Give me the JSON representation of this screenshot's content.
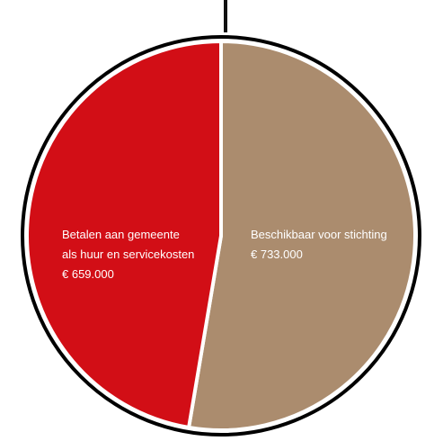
{
  "chart_data": {
    "type": "pie",
    "title": "",
    "slices": [
      {
        "name": "Beschikbaar voor stichting",
        "value": 733000,
        "value_label": "€ 733.000",
        "label_lines": [
          "Beschikbaar voor stichting"
        ],
        "color": "#ab8c6e"
      },
      {
        "name": "Betalen aan gemeente als huur en servicekosten",
        "value": 659000,
        "value_label": "€ 659.000",
        "label_lines": [
          "Betalen aan gemeente",
          "als huur en servicekosten"
        ],
        "color": "#d20e16"
      }
    ],
    "start_angle_deg": 0,
    "direction": "clockwise",
    "legend": "none",
    "colors": {
      "outline": "#000000",
      "slice_border": "#ffffff",
      "label_text": "#ffffff"
    }
  }
}
